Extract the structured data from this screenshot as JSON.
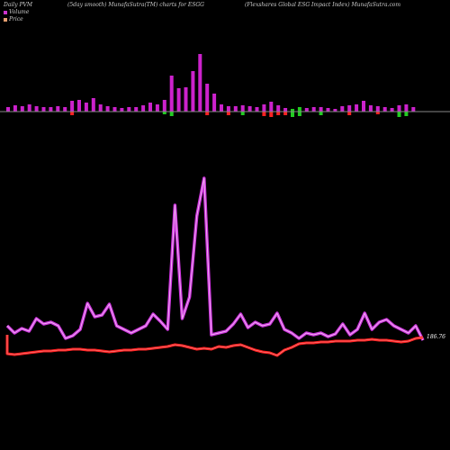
{
  "header": {
    "left": "Daily PVM",
    "center": "(5day smooth) MunafaSutra(TM) charts for ESGG",
    "right": "(Flexshares Global ESG Impact Index) MunafaSutra.com"
  },
  "legend": {
    "volume_label": "Volume",
    "price_label": "Price",
    "volume_color": "#cc33cc",
    "price_color": "#e8a070"
  },
  "colors": {
    "background": "#000000",
    "volume_up": "#cc22cc",
    "volume_down_red": "#ff2222",
    "volume_down_green": "#22cc22",
    "volume_line": "#cc33dd",
    "price_line": "#ff2222",
    "baseline": "#888888"
  },
  "chart_data": {
    "type": "bar",
    "price_label": "186.76",
    "volume_bars": [
      {
        "v": 5,
        "c": "m"
      },
      {
        "v": 7,
        "c": "m"
      },
      {
        "v": 6,
        "c": "m"
      },
      {
        "v": 8,
        "c": "m"
      },
      {
        "v": 6,
        "c": "m"
      },
      {
        "v": 5,
        "c": "m"
      },
      {
        "v": 5,
        "c": "m"
      },
      {
        "v": 6,
        "c": "m"
      },
      {
        "v": 5,
        "c": "m"
      },
      {
        "v": 12,
        "c": "m"
      },
      {
        "v": 13,
        "c": "m"
      },
      {
        "v": 10,
        "c": "m"
      },
      {
        "v": 15,
        "c": "m"
      },
      {
        "v": 8,
        "c": "m"
      },
      {
        "v": 6,
        "c": "m"
      },
      {
        "v": 5,
        "c": "m"
      },
      {
        "v": 4,
        "c": "m"
      },
      {
        "v": 5,
        "c": "m"
      },
      {
        "v": 5,
        "c": "m"
      },
      {
        "v": 7,
        "c": "m"
      },
      {
        "v": 10,
        "c": "m"
      },
      {
        "v": 8,
        "c": "m"
      },
      {
        "v": 13,
        "c": "m"
      },
      {
        "v": 40,
        "c": "m"
      },
      {
        "v": 26,
        "c": "m"
      },
      {
        "v": 27,
        "c": "m"
      },
      {
        "v": 45,
        "c": "m"
      },
      {
        "v": 64,
        "c": "m"
      },
      {
        "v": 31,
        "c": "m"
      },
      {
        "v": 20,
        "c": "m"
      },
      {
        "v": 8,
        "c": "m"
      },
      {
        "v": 6,
        "c": "m"
      },
      {
        "v": 6,
        "c": "m"
      },
      {
        "v": 7,
        "c": "m"
      },
      {
        "v": 6,
        "c": "m"
      },
      {
        "v": 5,
        "c": "m"
      },
      {
        "v": 8,
        "c": "m"
      },
      {
        "v": 11,
        "c": "m"
      },
      {
        "v": 7,
        "c": "m"
      },
      {
        "v": 4,
        "c": "m"
      },
      {
        "v": 3,
        "c": "g"
      },
      {
        "v": 5,
        "c": "g"
      },
      {
        "v": 4,
        "c": "m"
      },
      {
        "v": 5,
        "c": "m"
      },
      {
        "v": 5,
        "c": "m"
      },
      {
        "v": 4,
        "c": "m"
      },
      {
        "v": 3,
        "c": "m"
      },
      {
        "v": 6,
        "c": "m"
      },
      {
        "v": 7,
        "c": "m"
      },
      {
        "v": 8,
        "c": "m"
      },
      {
        "v": 12,
        "c": "m"
      },
      {
        "v": 7,
        "c": "m"
      },
      {
        "v": 6,
        "c": "m"
      },
      {
        "v": 5,
        "c": "m"
      },
      {
        "v": 4,
        "c": "m"
      },
      {
        "v": 7,
        "c": "m"
      },
      {
        "v": 8,
        "c": "m"
      },
      {
        "v": 5,
        "c": "m"
      }
    ],
    "down_marks": [
      {
        "i": 9,
        "v": 4,
        "c": "r"
      },
      {
        "i": 22,
        "v": 3,
        "c": "g"
      },
      {
        "i": 23,
        "v": 5,
        "c": "g"
      },
      {
        "i": 28,
        "v": 4,
        "c": "r"
      },
      {
        "i": 31,
        "v": 4,
        "c": "r"
      },
      {
        "i": 33,
        "v": 4,
        "c": "g"
      },
      {
        "i": 36,
        "v": 5,
        "c": "r"
      },
      {
        "i": 37,
        "v": 6,
        "c": "r"
      },
      {
        "i": 38,
        "v": 4,
        "c": "r"
      },
      {
        "i": 39,
        "v": 4,
        "c": "r"
      },
      {
        "i": 40,
        "v": 6,
        "c": "g"
      },
      {
        "i": 41,
        "v": 5,
        "c": "g"
      },
      {
        "i": 44,
        "v": 4,
        "c": "g"
      },
      {
        "i": 48,
        "v": 4,
        "c": "r"
      },
      {
        "i": 52,
        "v": 3,
        "c": "r"
      },
      {
        "i": 55,
        "v": 6,
        "c": "g"
      },
      {
        "i": 56,
        "v": 5,
        "c": "g"
      }
    ],
    "volume_line": [
      362,
      370,
      365,
      368,
      354,
      360,
      358,
      362,
      376,
      373,
      366,
      337,
      352,
      350,
      338,
      362,
      366,
      370,
      366,
      362,
      349,
      357,
      366,
      228,
      354,
      330,
      240,
      198,
      372,
      370,
      368,
      360,
      349,
      364,
      358,
      362,
      360,
      348,
      366,
      370,
      376,
      370,
      372,
      370,
      374,
      371,
      360,
      372,
      366,
      348,
      366,
      358,
      355,
      362,
      366,
      370,
      362,
      378
    ],
    "price_line": [
      393,
      394,
      393,
      392,
      391,
      390,
      390,
      389,
      389,
      388,
      388,
      389,
      389,
      390,
      391,
      390,
      389,
      389,
      388,
      388,
      387,
      386,
      385,
      383,
      384,
      386,
      388,
      387,
      388,
      385,
      386,
      384,
      383,
      386,
      389,
      391,
      392,
      395,
      389,
      386,
      382,
      381,
      381,
      380,
      380,
      379,
      379,
      379,
      378,
      378,
      377,
      378,
      378,
      379,
      380,
      379,
      376,
      375
    ]
  }
}
